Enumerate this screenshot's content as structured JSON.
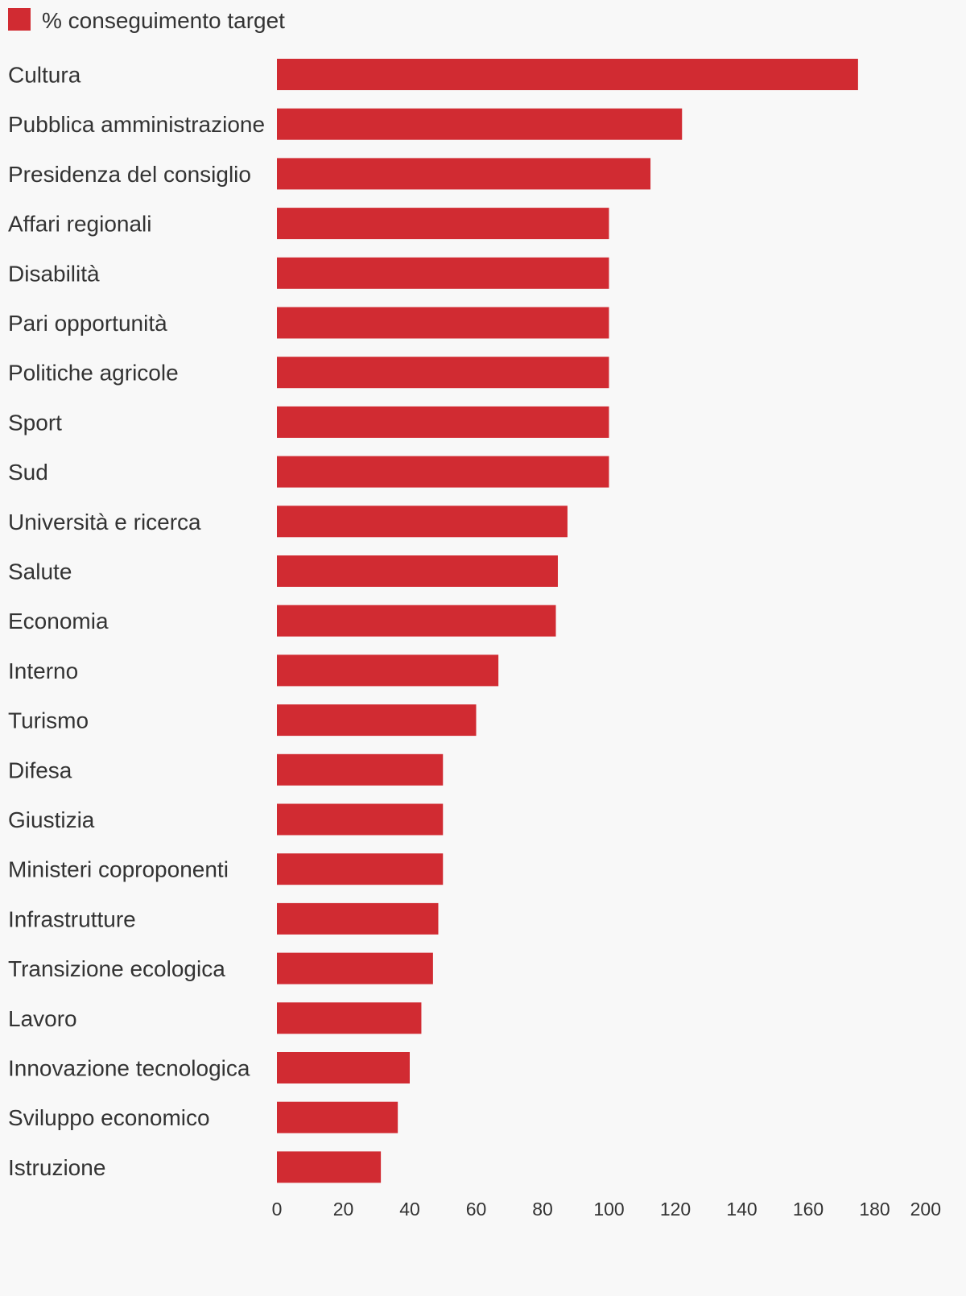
{
  "chart_data": {
    "type": "bar",
    "orientation": "horizontal",
    "legend": {
      "label": "% conseguimento target",
      "color": "#d12b32",
      "placement": "top-left"
    },
    "categories": [
      "Cultura",
      "Pubblica amministrazione",
      "Presidenza del consiglio",
      "Affari regionali",
      "Disabilità",
      "Pari opportunità",
      "Politiche agricole",
      "Sport",
      "Sud",
      "Università e ricerca",
      "Salute",
      "Economia",
      "Interno",
      "Turismo",
      "Difesa",
      "Giustizia",
      "Ministeri coproponenti",
      "Infrastrutture",
      "Transizione ecologica",
      "Lavoro",
      "Innovazione tecnologica",
      "Sviluppo economico",
      "Istruzione"
    ],
    "series": [
      {
        "name": "% conseguimento target",
        "color": "#d12b32",
        "values": [
          175,
          122,
          112.5,
          100,
          100,
          100,
          100,
          100,
          100,
          87.5,
          84.6,
          84,
          66.7,
          60,
          50,
          50,
          50,
          48.6,
          47,
          43.5,
          40,
          36.4,
          31.3
        ]
      }
    ],
    "xlim": [
      0,
      200
    ],
    "xticks": [
      "0",
      "20",
      "40",
      "60",
      "80",
      "100",
      "120",
      "140",
      "160",
      "180",
      "200"
    ],
    "grid": false
  }
}
